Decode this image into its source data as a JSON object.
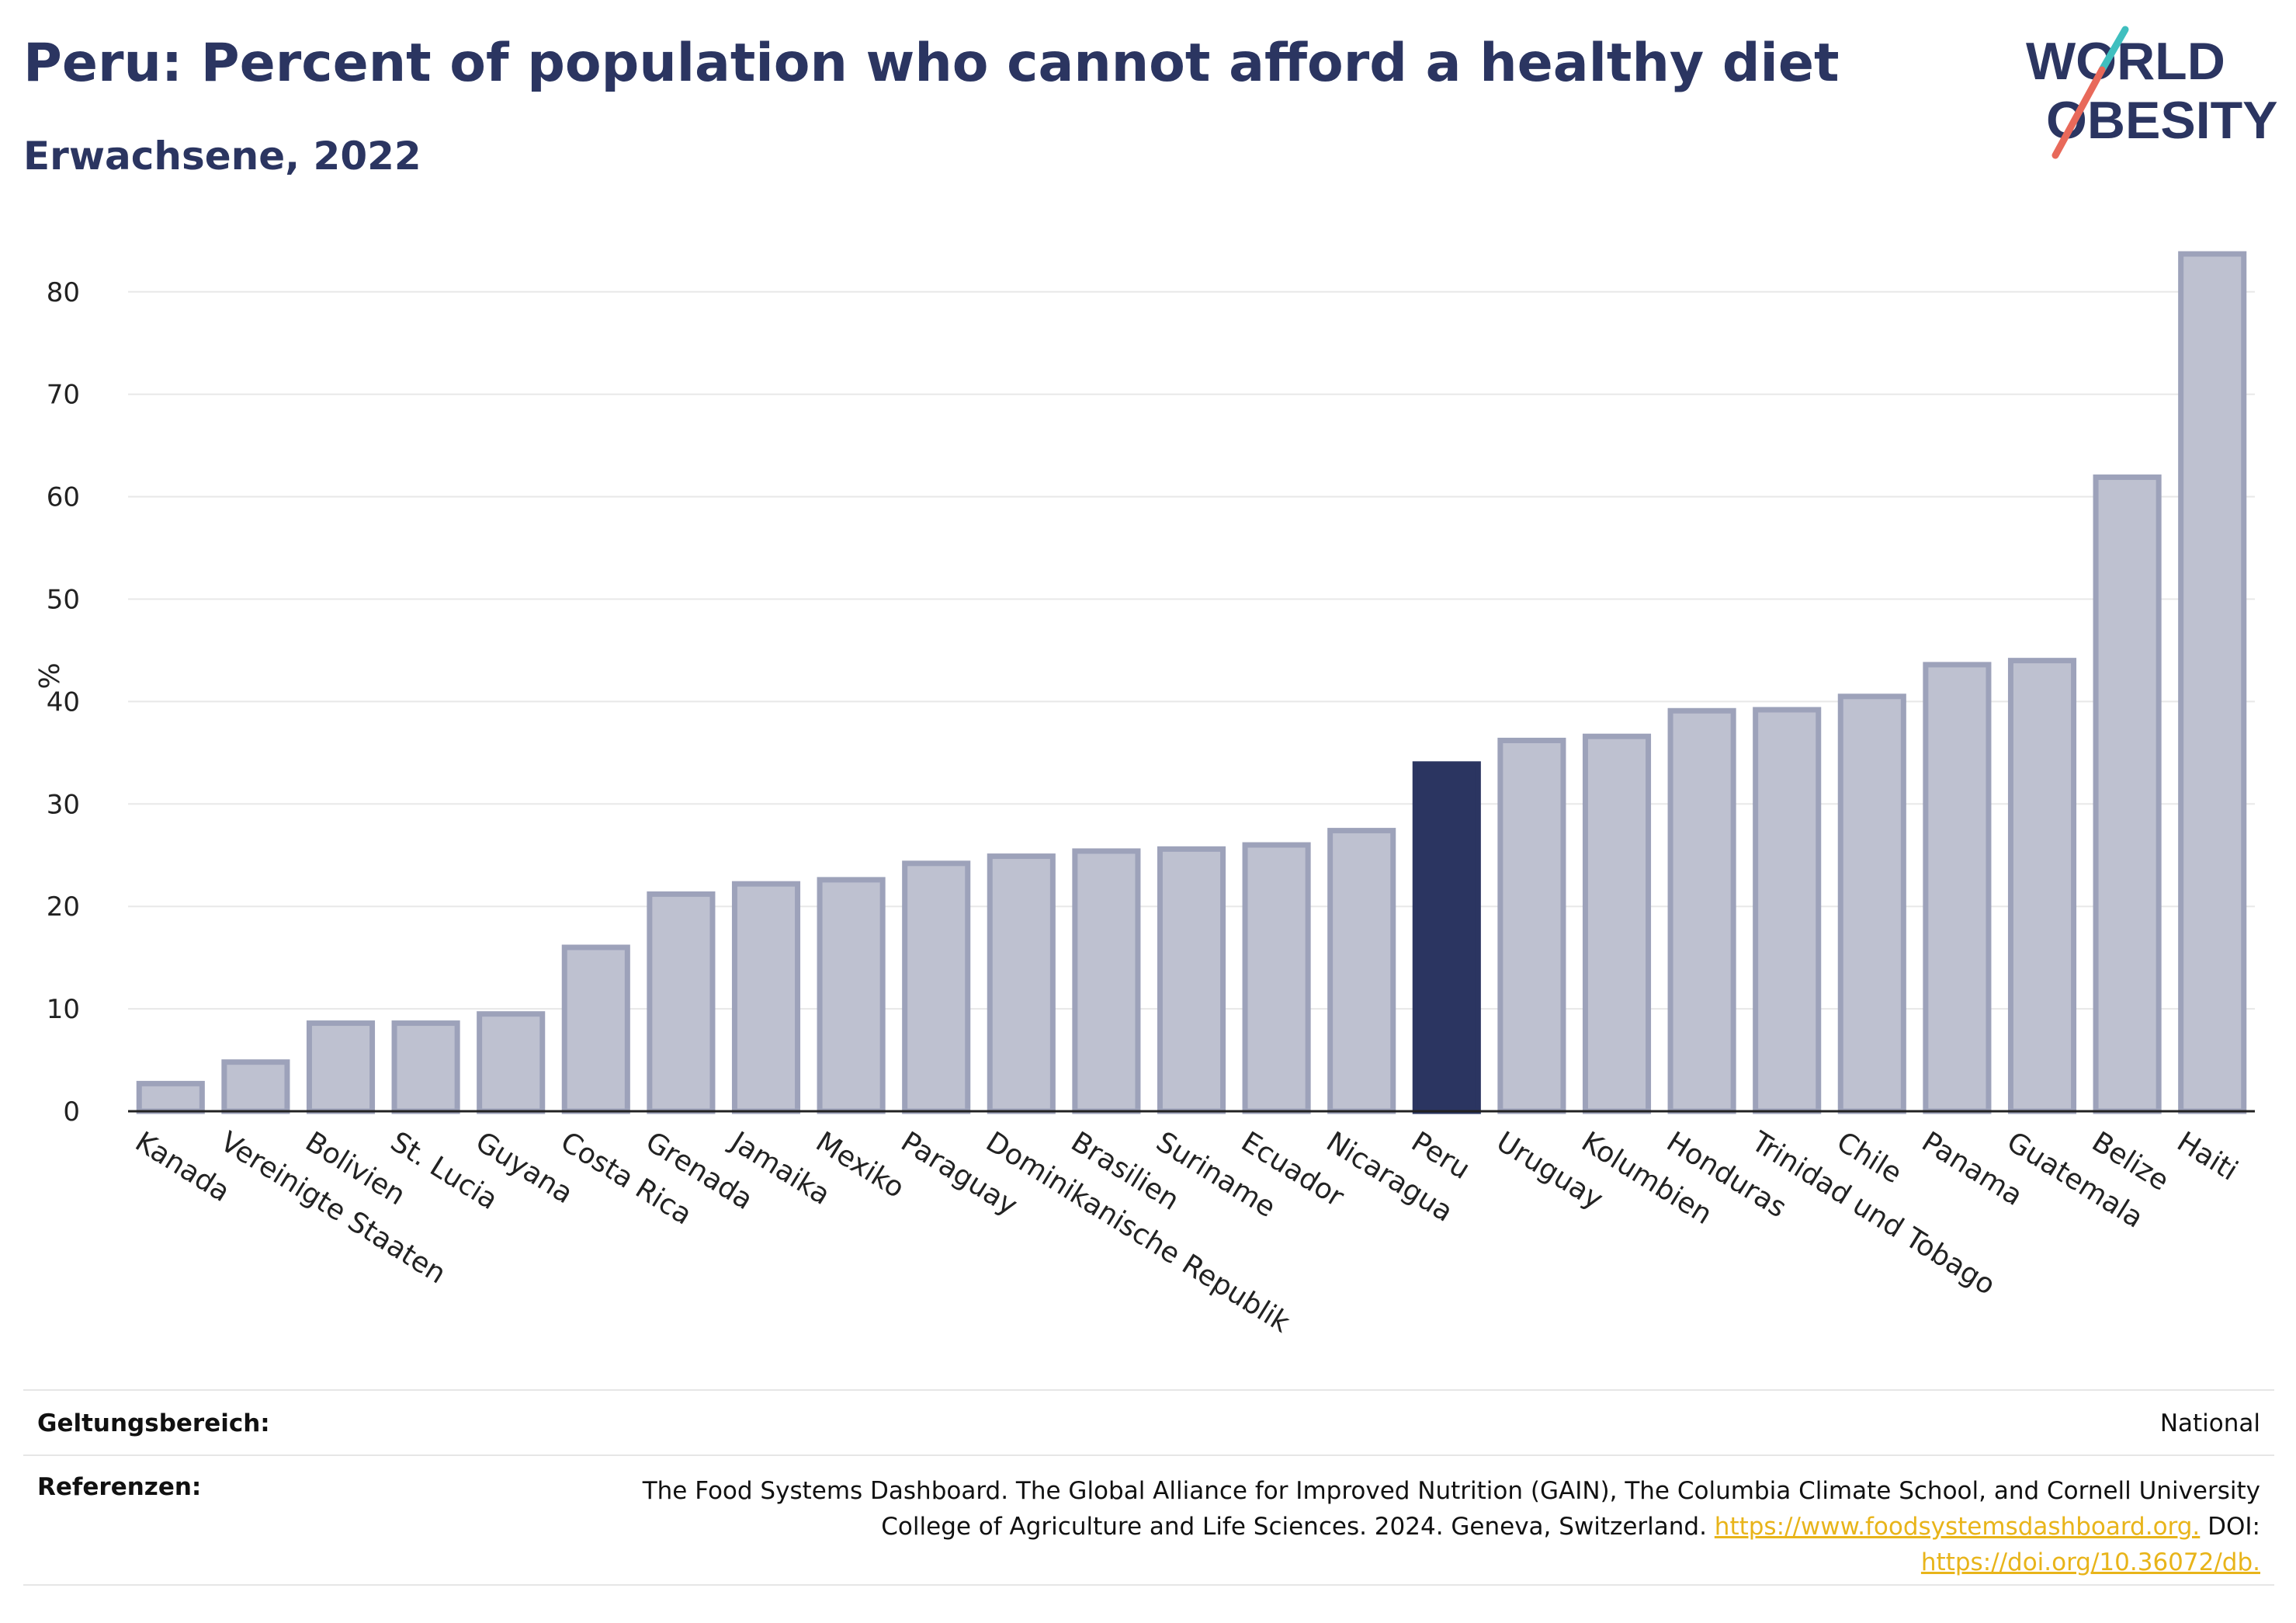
{
  "title": "Peru: Percent of population who cannot afford a healthy diet",
  "subtitle": "Erwachsene, 2022",
  "logo": {
    "line1": "WORLD",
    "line2": "OBESITY",
    "colors": {
      "text": "#2b3561",
      "slash_teal": "#3fbfbf",
      "slash_coral": "#e8695a"
    }
  },
  "colors": {
    "highlight": "#2b3561",
    "bar_fill": "#bec1d0",
    "bar_stroke": "#9da2ba",
    "grid": "#e8e8e8",
    "title": "#2b3561",
    "link": "#e8b41a"
  },
  "chart_data": {
    "type": "bar",
    "ylabel": "%",
    "ylim": [
      0,
      85
    ],
    "yticks": [
      0,
      10,
      20,
      30,
      40,
      50,
      60,
      70,
      80
    ],
    "grid": true,
    "highlight_category": "Peru",
    "categories": [
      "Kanada",
      "Vereinigte Staaten",
      "Bolivien",
      "St. Lucia",
      "Guyana",
      "Costa Rica",
      "Grenada",
      "Jamaika",
      "Mexiko",
      "Paraguay",
      "Dominikanische Republik",
      "Brasilien",
      "Suriname",
      "Ecuador",
      "Nicaragua",
      "Peru",
      "Uruguay",
      "Kolumbien",
      "Honduras",
      "Trinidad und Tobago",
      "Chile",
      "Panama",
      "Guatemala",
      "Belize",
      "Haiti"
    ],
    "values": [
      2.7,
      4.8,
      8.6,
      8.6,
      9.5,
      16.0,
      21.2,
      22.2,
      22.6,
      24.2,
      24.9,
      25.4,
      25.6,
      26.0,
      27.4,
      33.9,
      36.2,
      36.6,
      39.1,
      39.2,
      40.5,
      43.6,
      44.0,
      61.9,
      83.7
    ]
  },
  "footer": {
    "scope_label": "Geltungsbereich:",
    "scope_value": "National",
    "refs_label": "Referenzen:",
    "refs_text_1": "The Food Systems Dashboard. The Global Alliance for Improved Nutrition (GAIN), The Columbia Climate School, and Cornell University College of Agriculture and Life Sciences. 2024. Geneva, Switzerland. ",
    "refs_link_1": "https://www.foodsystemsdashboard.org.",
    "refs_text_2": " DOI: ",
    "refs_link_2": "https://doi.org/10.36072/db."
  }
}
